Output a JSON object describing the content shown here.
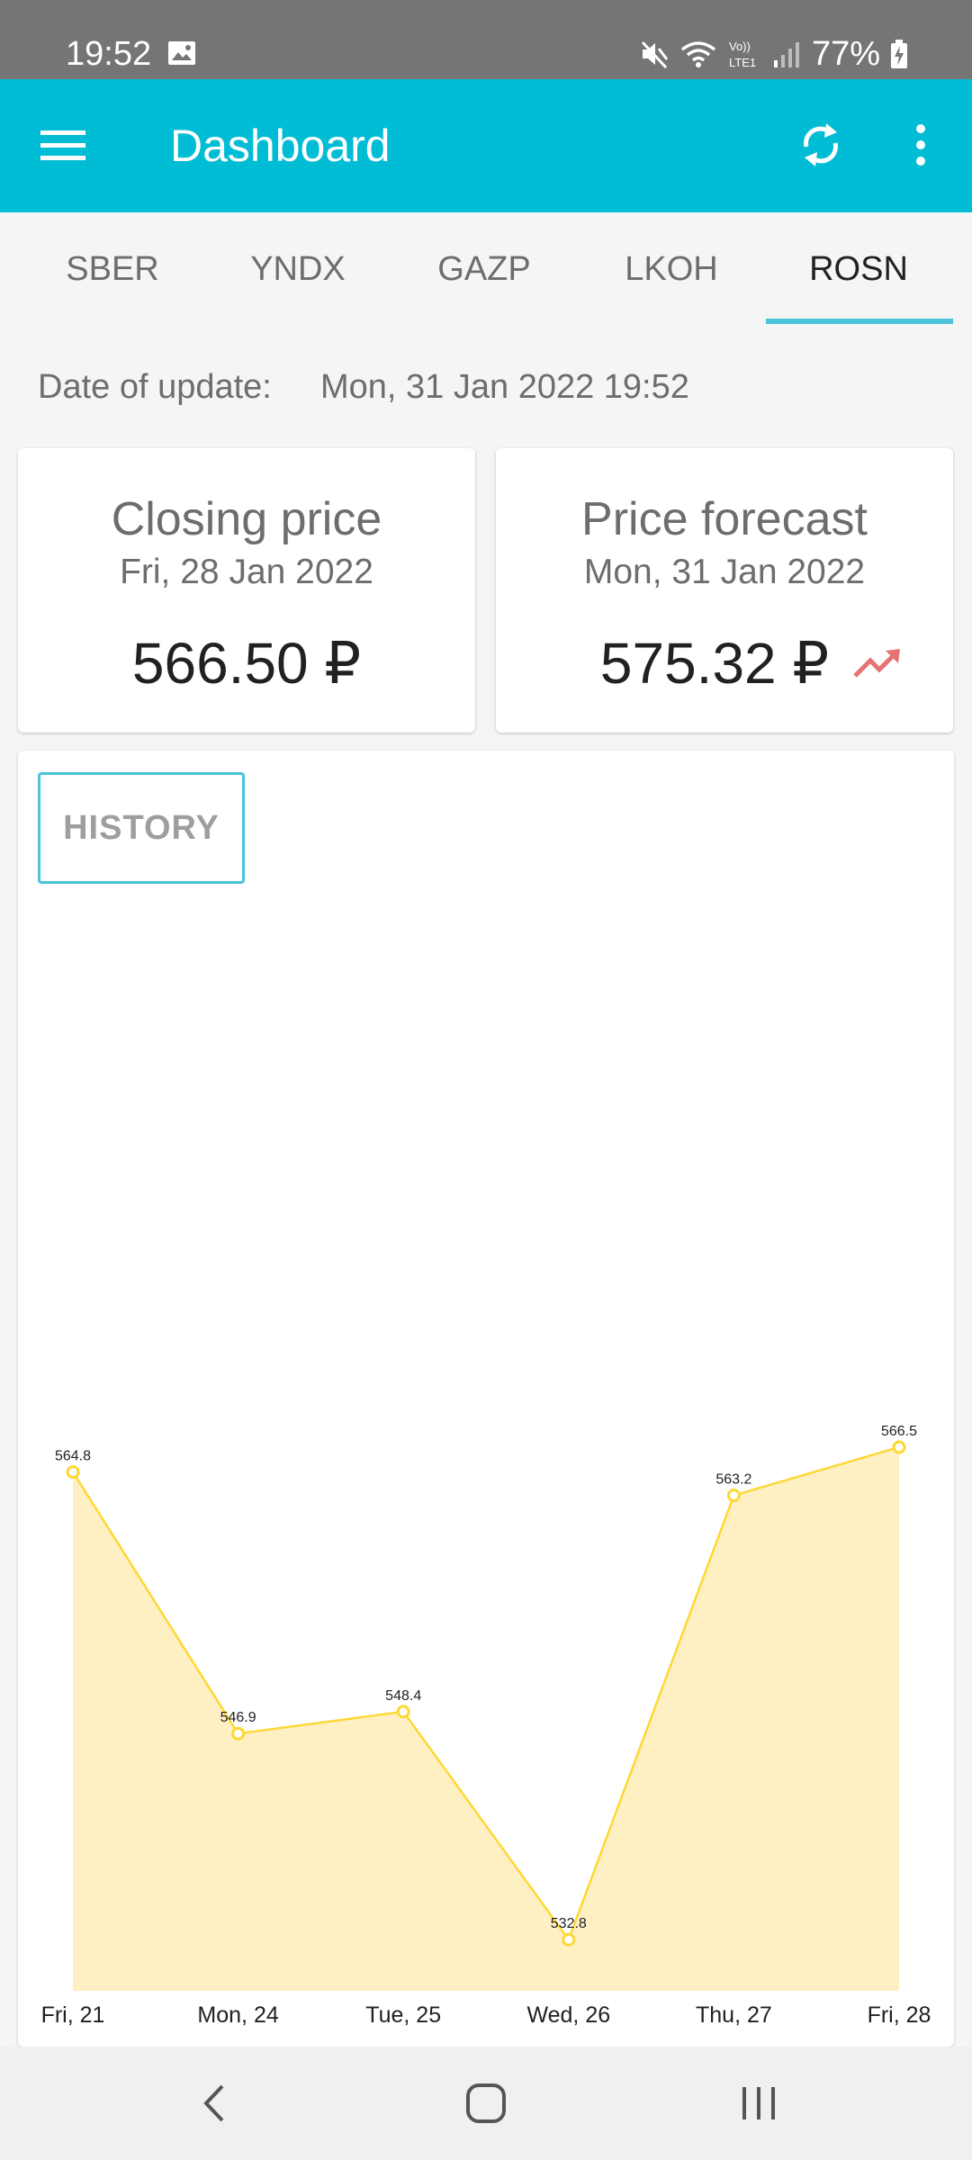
{
  "status_bar": {
    "time": "19:52",
    "battery": "77%",
    "network_label": "Vo)) LTE1",
    "icons": [
      "image-icon",
      "mute-icon",
      "wifi-icon",
      "volte-icon",
      "signal-icon",
      "battery-charging-icon"
    ]
  },
  "app_bar": {
    "title": "Dashboard",
    "icons": [
      "menu-icon",
      "refresh-icon",
      "more-icon"
    ],
    "color": "#00bcd4"
  },
  "tabs": [
    {
      "label": "SBER",
      "active": false
    },
    {
      "label": "YNDX",
      "active": false
    },
    {
      "label": "GAZP",
      "active": false
    },
    {
      "label": "LKOH",
      "active": false
    },
    {
      "label": "ROSN",
      "active": true
    }
  ],
  "update": {
    "label": "Date of update:",
    "value": "Mon, 31 Jan 2022 19:52"
  },
  "closing": {
    "title": "Closing price",
    "date": "Fri, 28 Jan 2022",
    "price": "566.50 ₽"
  },
  "forecast": {
    "title": "Price forecast",
    "date": "Mon, 31 Jan 2022",
    "price": "575.32 ₽",
    "trend_icon": "trending-up-icon",
    "trend_color": "#e57373"
  },
  "history_button": "HISTORY",
  "chart_data": {
    "type": "area",
    "categories": [
      "Fri, 21",
      "Mon, 24",
      "Tue, 25",
      "Wed, 26",
      "Thu, 27",
      "Fri, 28"
    ],
    "values": [
      564.8,
      546.9,
      548.4,
      532.8,
      563.2,
      566.5
    ],
    "data_labels": [
      "564.8",
      "546.9",
      "548.4",
      "532.8",
      "563.2",
      "566.5"
    ],
    "ylim": [
      529.3,
      600.0
    ],
    "line_color": "#fdd835",
    "fill_color": "#fff0c4",
    "grid": false,
    "legend": "none"
  },
  "nav_bar": {
    "icons": [
      "back-icon",
      "home-icon",
      "recents-icon"
    ]
  }
}
